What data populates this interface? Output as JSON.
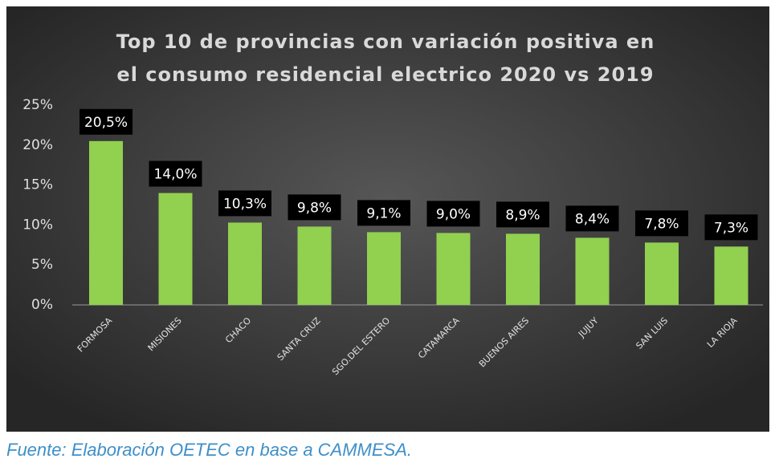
{
  "chart_data": {
    "type": "bar",
    "title": [
      "Top 10 de provincias con variación positiva en",
      "el consumo residencial electrico 2020 vs 2019"
    ],
    "categories": [
      "FORMOSA",
      "MISIONES",
      "CHACO",
      "SANTA CRUZ",
      "SGO.DEL ESTERO",
      "CATAMARCA",
      "BUENOS AIRES",
      "JUJUY",
      "SAN LUIS",
      "LA RIOJA"
    ],
    "values": [
      20.5,
      14.0,
      10.3,
      9.8,
      9.1,
      9.0,
      8.9,
      8.4,
      7.8,
      7.3
    ],
    "value_labels": [
      "20,5%",
      "14,0%",
      "10,3%",
      "9,8%",
      "9,1%",
      "9,0%",
      "8,9%",
      "8,4%",
      "7,8%",
      "7,3%"
    ],
    "color": "#92d050",
    "ylim": [
      0,
      25
    ],
    "yticks": [
      {
        "value": 0,
        "label": "0%"
      },
      {
        "value": 5,
        "label": "5%"
      },
      {
        "value": 10,
        "label": "10%"
      },
      {
        "value": 15,
        "label": "15%"
      },
      {
        "value": 20,
        "label": "20%"
      },
      {
        "value": 25,
        "label": "25%"
      }
    ],
    "grid": false,
    "source": "Fuente: Elaboración OETEC en base a CAMMESA."
  }
}
